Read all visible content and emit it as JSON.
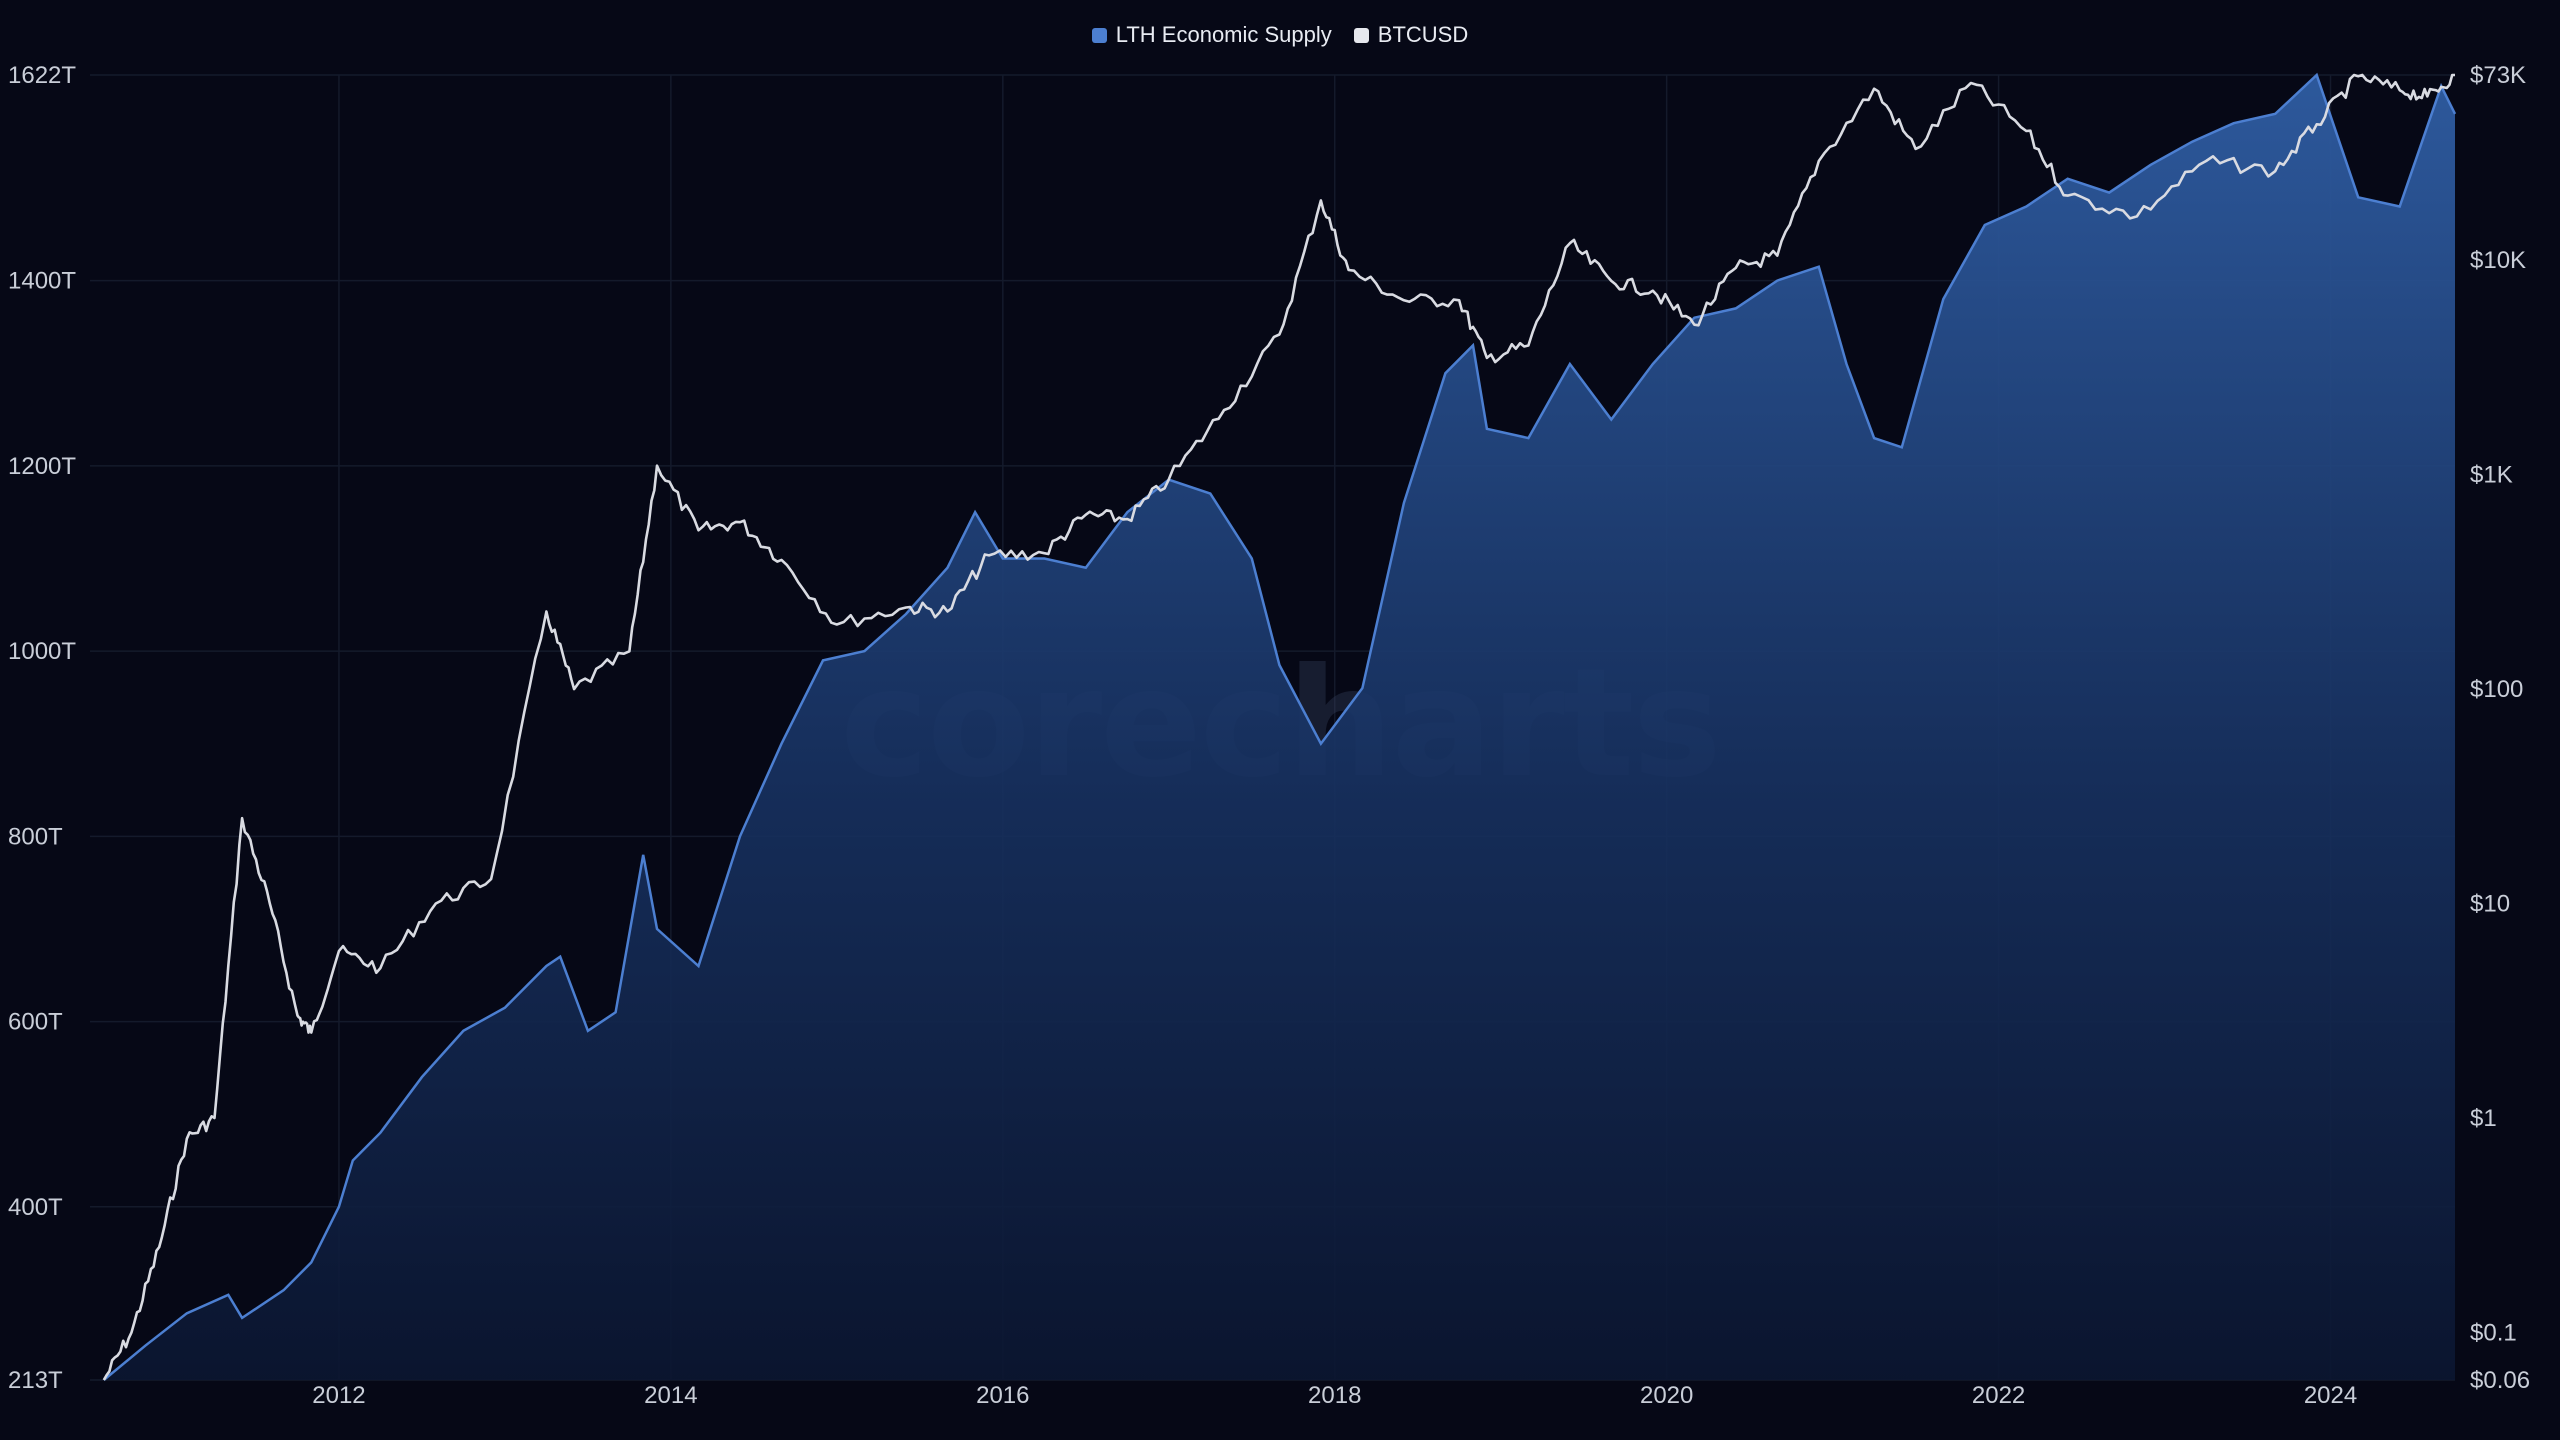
{
  "legend": {
    "series1": "LTH Economic Supply",
    "series2": "BTCUSD"
  },
  "watermark": "corecharts",
  "colors": {
    "background": "#060816",
    "lth_line": "#4c7fd1",
    "lth_fill_top": "#2f5da3",
    "lth_fill_bottom": "#0b1631",
    "btc_line": "#d9dbe2",
    "grid": "#141a2b"
  },
  "chart_data": {
    "type": "line",
    "x_axis": {
      "type": "date",
      "range": [
        "2010-07",
        "2024-10"
      ],
      "ticks": [
        "2012",
        "2014",
        "2016",
        "2018",
        "2020",
        "2022",
        "2024"
      ]
    },
    "y_axis_left": {
      "range": [
        213,
        1622
      ],
      "unit": "T",
      "tick_labels": [
        "213T",
        "400T",
        "600T",
        "800T",
        "1000T",
        "1200T",
        "1400T",
        "1622T"
      ],
      "tick_values": [
        213,
        400,
        600,
        800,
        1000,
        1200,
        1400,
        1622
      ]
    },
    "y_axis_right": {
      "scale": "log",
      "range": [
        0.06,
        73000
      ],
      "tick_labels": [
        "$0.06",
        "$0.1",
        "$1",
        "$10",
        "$100",
        "$1K",
        "$10K",
        "$73K"
      ],
      "tick_values": [
        0.06,
        0.1,
        1,
        10,
        100,
        1000,
        10000,
        73000
      ]
    },
    "grid": true,
    "legend_position": "top-center",
    "series": [
      {
        "name": "LTH Economic Supply",
        "type": "area",
        "axis": "left",
        "points": [
          [
            "2010-08",
            213
          ],
          [
            "2010-11",
            250
          ],
          [
            "2011-02",
            285
          ],
          [
            "2011-05",
            305
          ],
          [
            "2011-06",
            280
          ],
          [
            "2011-09",
            310
          ],
          [
            "2011-11",
            340
          ],
          [
            "2012-01",
            400
          ],
          [
            "2012-02",
            450
          ],
          [
            "2012-04",
            480
          ],
          [
            "2012-07",
            540
          ],
          [
            "2012-10",
            590
          ],
          [
            "2013-01",
            615
          ],
          [
            "2013-04",
            660
          ],
          [
            "2013-05",
            670
          ],
          [
            "2013-07",
            590
          ],
          [
            "2013-09",
            610
          ],
          [
            "2013-11",
            780
          ],
          [
            "2013-12",
            700
          ],
          [
            "2014-03",
            660
          ],
          [
            "2014-06",
            800
          ],
          [
            "2014-09",
            900
          ],
          [
            "2014-12",
            990
          ],
          [
            "2015-03",
            1000
          ],
          [
            "2015-06",
            1040
          ],
          [
            "2015-09",
            1090
          ],
          [
            "2015-11",
            1150
          ],
          [
            "2016-01",
            1100
          ],
          [
            "2016-04",
            1100
          ],
          [
            "2016-07",
            1090
          ],
          [
            "2016-10",
            1150
          ],
          [
            "2017-01",
            1185
          ],
          [
            "2017-04",
            1170
          ],
          [
            "2017-07",
            1100
          ],
          [
            "2017-09",
            985
          ],
          [
            "2017-12",
            900
          ],
          [
            "2018-03",
            960
          ],
          [
            "2018-06",
            1160
          ],
          [
            "2018-09",
            1300
          ],
          [
            "2018-11",
            1330
          ],
          [
            "2018-12",
            1240
          ],
          [
            "2019-03",
            1230
          ],
          [
            "2019-06",
            1310
          ],
          [
            "2019-09",
            1250
          ],
          [
            "2019-12",
            1310
          ],
          [
            "2020-03",
            1360
          ],
          [
            "2020-06",
            1370
          ],
          [
            "2020-09",
            1400
          ],
          [
            "2020-12",
            1415
          ],
          [
            "2021-02",
            1310
          ],
          [
            "2021-04",
            1230
          ],
          [
            "2021-06",
            1220
          ],
          [
            "2021-09",
            1380
          ],
          [
            "2021-12",
            1460
          ],
          [
            "2022-03",
            1480
          ],
          [
            "2022-06",
            1510
          ],
          [
            "2022-09",
            1495
          ],
          [
            "2022-12",
            1525
          ],
          [
            "2023-03",
            1550
          ],
          [
            "2023-06",
            1570
          ],
          [
            "2023-09",
            1580
          ],
          [
            "2023-12",
            1622
          ],
          [
            "2024-03",
            1490
          ],
          [
            "2024-06",
            1480
          ],
          [
            "2024-09",
            1610
          ],
          [
            "2024-10",
            1580
          ]
        ]
      },
      {
        "name": "BTCUSD",
        "type": "line",
        "axis": "right",
        "points": [
          [
            "2010-08",
            0.06
          ],
          [
            "2010-10",
            0.1
          ],
          [
            "2010-12",
            0.25
          ],
          [
            "2011-02",
            0.8
          ],
          [
            "2011-04",
            1
          ],
          [
            "2011-06",
            25
          ],
          [
            "2011-08",
            10
          ],
          [
            "2011-10",
            3
          ],
          [
            "2011-11",
            2.5
          ],
          [
            "2012-01",
            6
          ],
          [
            "2012-04",
            5
          ],
          [
            "2012-08",
            10
          ],
          [
            "2012-12",
            13
          ],
          [
            "2013-04",
            230
          ],
          [
            "2013-06",
            100
          ],
          [
            "2013-10",
            150
          ],
          [
            "2013-12",
            1100
          ],
          [
            "2014-03",
            550
          ],
          [
            "2014-06",
            600
          ],
          [
            "2014-09",
            400
          ],
          [
            "2015-01",
            200
          ],
          [
            "2015-06",
            240
          ],
          [
            "2015-09",
            230
          ],
          [
            "2015-12",
            420
          ],
          [
            "2016-04",
            430
          ],
          [
            "2016-07",
            650
          ],
          [
            "2016-10",
            620
          ],
          [
            "2017-01",
            950
          ],
          [
            "2017-05",
            2000
          ],
          [
            "2017-09",
            4500
          ],
          [
            "2017-12",
            19000
          ],
          [
            "2018-02",
            9000
          ],
          [
            "2018-06",
            6500
          ],
          [
            "2018-10",
            6500
          ],
          [
            "2018-12",
            3500
          ],
          [
            "2019-03",
            4000
          ],
          [
            "2019-06",
            12000
          ],
          [
            "2019-09",
            8000
          ],
          [
            "2019-12",
            7200
          ],
          [
            "2020-03",
            5000
          ],
          [
            "2020-06",
            9200
          ],
          [
            "2020-09",
            10500
          ],
          [
            "2020-12",
            29000
          ],
          [
            "2021-04",
            63000
          ],
          [
            "2021-07",
            33000
          ],
          [
            "2021-11",
            67000
          ],
          [
            "2022-03",
            40000
          ],
          [
            "2022-06",
            20000
          ],
          [
            "2022-11",
            16000
          ],
          [
            "2023-04",
            29000
          ],
          [
            "2023-09",
            26000
          ],
          [
            "2023-12",
            43000
          ],
          [
            "2024-03",
            72000
          ],
          [
            "2024-06",
            62000
          ],
          [
            "2024-08",
            58000
          ],
          [
            "2024-10",
            73000
          ]
        ]
      }
    ]
  }
}
